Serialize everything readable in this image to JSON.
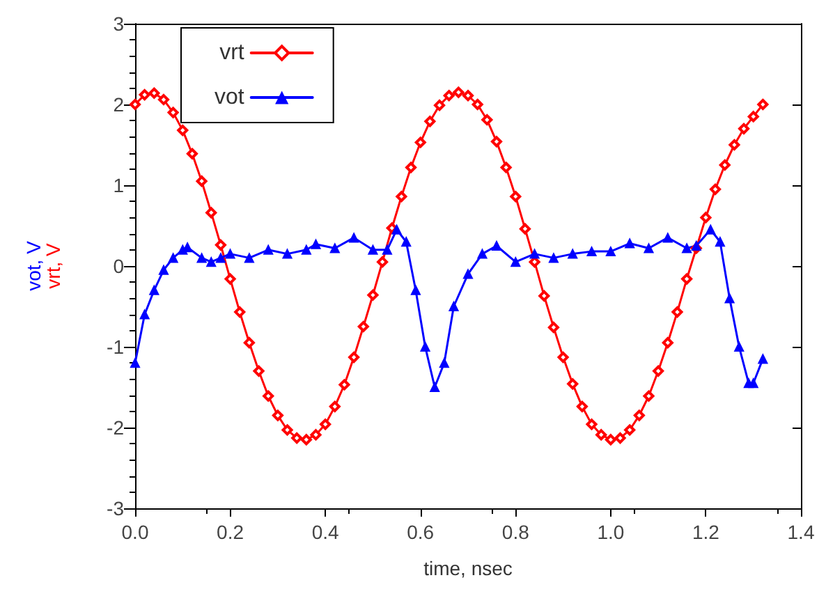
{
  "chart_data": {
    "type": "line",
    "xlabel": "time, nsec",
    "ylabel": "vot, V\nvrt, V",
    "xlim": [
      0,
      1.4
    ],
    "xticks": [
      {
        "value": 0,
        "label": "0.0"
      },
      {
        "value": 0.2,
        "label": "0.2"
      },
      {
        "value": 0.4,
        "label": "0.4"
      },
      {
        "value": 0.6,
        "label": "0.6"
      },
      {
        "value": 0.8,
        "label": "0.8"
      },
      {
        "value": 1.0,
        "label": "1.0"
      },
      {
        "value": 1.2,
        "label": "1.2"
      },
      {
        "value": 1.4,
        "label": "1.4"
      }
    ],
    "ylim": [
      -3,
      3
    ],
    "yticks": [
      -3,
      -2,
      -1,
      0,
      1,
      2,
      3
    ],
    "grid": false,
    "legend": "top left",
    "series": [
      {
        "name": "vrt",
        "color": "#ff0000",
        "marker": "diamond",
        "x": [
          0,
          0.02,
          0.04,
          0.06,
          0.08,
          0.1,
          0.12,
          0.14,
          0.16,
          0.18,
          0.2,
          0.22,
          0.24,
          0.26,
          0.28,
          0.3,
          0.32,
          0.34,
          0.36,
          0.38,
          0.4,
          0.42,
          0.44,
          0.46,
          0.48,
          0.5,
          0.52,
          0.54,
          0.56,
          0.58,
          0.6,
          0.62,
          0.64,
          0.66,
          0.68,
          0.7,
          0.72,
          0.74,
          0.76,
          0.78,
          0.8,
          0.82,
          0.84,
          0.86,
          0.88,
          0.9,
          0.92,
          0.94,
          0.96,
          0.98,
          1.0,
          1.02,
          1.04,
          1.06,
          1.08,
          1.1,
          1.12,
          1.14,
          1.16,
          1.18,
          1.2,
          1.22,
          1.24,
          1.26,
          1.28,
          1.3,
          1.32
        ],
        "values": [
          2.0,
          2.12,
          2.14,
          2.06,
          1.9,
          1.68,
          1.39,
          1.05,
          0.66,
          0.26,
          -0.16,
          -0.57,
          -0.95,
          -1.3,
          -1.61,
          -1.85,
          -2.03,
          -2.13,
          -2.15,
          -2.09,
          -1.96,
          -1.74,
          -1.47,
          -1.13,
          -0.75,
          -0.36,
          0.05,
          0.47,
          0.86,
          1.22,
          1.53,
          1.79,
          1.99,
          2.11,
          2.15,
          2.11,
          2.0,
          1.81,
          1.54,
          1.22,
          0.86,
          0.46,
          0.05,
          -0.37,
          -0.76,
          -1.13,
          -1.46,
          -1.74,
          -1.96,
          -2.09,
          -2.15,
          -2.13,
          -2.03,
          -1.85,
          -1.61,
          -1.3,
          -0.95,
          -0.57,
          -0.16,
          0.22,
          0.6,
          0.95,
          1.25,
          1.5,
          1.7,
          1.85,
          2.0
        ]
      },
      {
        "name": "vot",
        "color": "#0000ff",
        "marker": "triangle",
        "x": [
          0,
          0.02,
          0.04,
          0.06,
          0.08,
          0.1,
          0.11,
          0.14,
          0.16,
          0.18,
          0.2,
          0.24,
          0.28,
          0.32,
          0.36,
          0.38,
          0.42,
          0.46,
          0.5,
          0.53,
          0.55,
          0.57,
          0.59,
          0.61,
          0.63,
          0.65,
          0.67,
          0.7,
          0.73,
          0.76,
          0.8,
          0.84,
          0.88,
          0.92,
          0.96,
          1.0,
          1.04,
          1.08,
          1.12,
          1.16,
          1.18,
          1.21,
          1.23,
          1.25,
          1.27,
          1.29,
          1.3,
          1.32
        ],
        "values": [
          -1.2,
          -0.6,
          -0.3,
          -0.05,
          0.1,
          0.2,
          0.23,
          0.1,
          0.05,
          0.1,
          0.15,
          0.1,
          0.2,
          0.15,
          0.2,
          0.27,
          0.22,
          0.35,
          0.2,
          0.2,
          0.45,
          0.3,
          -0.3,
          -1.0,
          -1.5,
          -1.2,
          -0.5,
          -0.1,
          0.15,
          0.25,
          0.05,
          0.15,
          0.1,
          0.15,
          0.18,
          0.18,
          0.28,
          0.22,
          0.35,
          0.22,
          0.25,
          0.45,
          0.3,
          -0.4,
          -1.0,
          -1.45,
          -1.45,
          -1.15
        ]
      }
    ]
  }
}
